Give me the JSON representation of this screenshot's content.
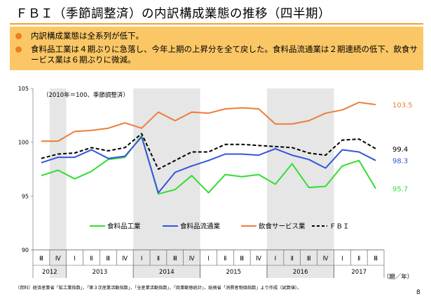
{
  "title": "ＦＢＩ（季節調整済）の内訳構成業態の推移（四半期）",
  "bullets": [
    "内訳構成業態は全系列が低下。",
    "食料品工業は４期ぶりに急落し、今年上期の上昇分を全て戻した。食料品流通業は２期連続の低下、飲食サービス業は６期ぶりに微減。"
  ],
  "footnote": "（資料）経済産業省「鉱工業指数」、「第３次産業活動指数」、「全産業活動指数」、「商業動態統計」、総務省「消費者物価指数」より作成（試算値）。",
  "page_number": "8",
  "colors": {
    "accent": "#fbc766",
    "shade": "#e6e6e6",
    "food_industry": "#33dd33",
    "food_distribution": "#3355dd",
    "food_service": "#ee7d3a",
    "fbi": "#000000"
  },
  "chart_data": {
    "type": "line",
    "note": "（2010年＝100、季節調整済）",
    "x_unit": "（期／年）",
    "ylim": [
      90,
      105
    ],
    "yticks": [
      90,
      95,
      100,
      105
    ],
    "quarters": [
      "Ⅲ",
      "Ⅳ",
      "Ⅰ",
      "Ⅱ",
      "Ⅲ",
      "Ⅳ",
      "Ⅰ",
      "Ⅱ",
      "Ⅲ",
      "Ⅳ",
      "Ⅰ",
      "Ⅱ",
      "Ⅲ",
      "Ⅳ",
      "Ⅰ",
      "Ⅱ",
      "Ⅲ",
      "Ⅳ",
      "Ⅰ",
      "Ⅱ",
      "Ⅲ"
    ],
    "years": [
      {
        "label": "2012",
        "start": 0,
        "end": 1
      },
      {
        "label": "2013",
        "start": 2,
        "end": 5
      },
      {
        "label": "2014",
        "start": 6,
        "end": 9
      },
      {
        "label": "2015",
        "start": 10,
        "end": 13
      },
      {
        "label": "2016",
        "start": 14,
        "end": 17
      },
      {
        "label": "2017",
        "start": 18,
        "end": 20
      }
    ],
    "shaded_ranges": [
      [
        1,
        1
      ],
      [
        6,
        9
      ],
      [
        14,
        17
      ]
    ],
    "series": [
      {
        "name": "食料品工業",
        "color": "#33dd33",
        "dash": false,
        "last_label": "95.7",
        "values": [
          96.9,
          97.4,
          96.6,
          97.3,
          98.4,
          98.6,
          100.6,
          95.2,
          95.6,
          96.9,
          95.3,
          97.0,
          96.8,
          97.0,
          96.1,
          98.0,
          95.8,
          95.9,
          97.8,
          98.3,
          95.7
        ]
      },
      {
        "name": "食料品流通業",
        "color": "#3355dd",
        "dash": false,
        "last_label": "98.3",
        "values": [
          98.1,
          98.6,
          98.6,
          99.3,
          98.5,
          98.7,
          100.5,
          95.3,
          97.2,
          97.8,
          98.3,
          98.9,
          98.9,
          98.8,
          99.4,
          98.8,
          98.4,
          97.6,
          99.3,
          99.1,
          98.3
        ]
      },
      {
        "name": "飲食サービス業",
        "color": "#ee7d3a",
        "dash": false,
        "last_label": "103.5",
        "values": [
          100.1,
          100.1,
          101.0,
          101.1,
          101.3,
          101.8,
          101.3,
          102.8,
          102.0,
          102.8,
          102.7,
          103.1,
          103.2,
          103.1,
          101.7,
          101.7,
          102.0,
          102.7,
          103.0,
          103.7,
          103.5
        ]
      },
      {
        "name": "ＦＢＩ",
        "color": "#000000",
        "dash": true,
        "last_label": "99.4",
        "values": [
          98.5,
          98.9,
          99.0,
          99.5,
          99.2,
          99.5,
          100.8,
          97.5,
          98.3,
          99.1,
          99.1,
          99.8,
          99.8,
          99.7,
          99.6,
          99.5,
          99.0,
          98.8,
          100.2,
          100.3,
          99.4
        ]
      }
    ]
  }
}
